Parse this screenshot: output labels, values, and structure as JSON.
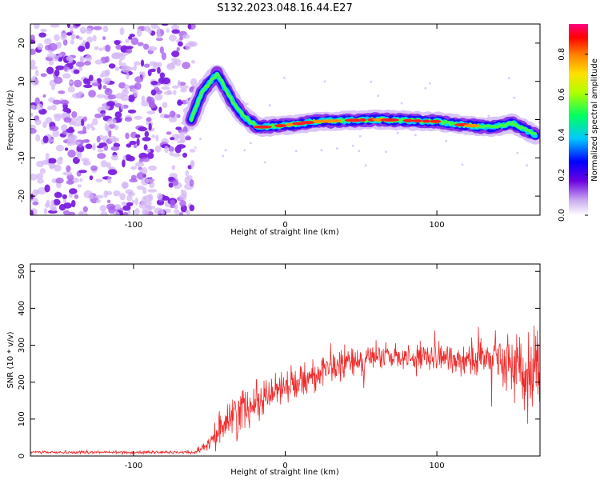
{
  "title": "S132.2023.048.16.44.E27",
  "colors": {
    "snr_line": "#ef2b2b",
    "scatter_purple": "#8a2be2",
    "axis": "#000000"
  },
  "chart_data": [
    {
      "type": "heatmap",
      "xlabel": "Height of straight line (km)",
      "ylabel": "Frequency (Hz)",
      "xlim": [
        -168,
        168
      ],
      "ylim": [
        -25,
        25
      ],
      "x_ticks": [
        -100,
        0,
        100
      ],
      "y_ticks": [
        -20,
        -10,
        0,
        10,
        20
      ],
      "colorbar": {
        "label": "Normalized spectral amplitude",
        "range": [
          0,
          0.95
        ],
        "ticks": [
          "0.0",
          "0.2",
          "0.4",
          "0.6",
          "0.8"
        ],
        "colormap": "rainbow"
      },
      "noise_region_x": [
        -168,
        -60
      ],
      "signal_track": [
        {
          "x": -62,
          "y": 0
        },
        {
          "x": -55,
          "y": 7
        },
        {
          "x": -45,
          "y": 12
        },
        {
          "x": -35,
          "y": 5
        },
        {
          "x": -28,
          "y": 1
        },
        {
          "x": -18,
          "y": -2
        },
        {
          "x": 0,
          "y": -1.5
        },
        {
          "x": 20,
          "y": -0.5
        },
        {
          "x": 60,
          "y": 0
        },
        {
          "x": 100,
          "y": -0.5
        },
        {
          "x": 120,
          "y": -1.5
        },
        {
          "x": 135,
          "y": -2
        },
        {
          "x": 150,
          "y": -1
        },
        {
          "x": 165,
          "y": -4
        }
      ]
    },
    {
      "type": "line",
      "xlabel": "Height of straight line (km)",
      "ylabel": "SNR (10 * v/v)",
      "xlim": [
        -168,
        168
      ],
      "ylim": [
        0,
        520
      ],
      "x_ticks": [
        -100,
        0,
        100
      ],
      "y_ticks": [
        0,
        100,
        200,
        300,
        400,
        500
      ],
      "series": [
        {
          "envelope": [
            {
              "x": -168,
              "mean": 10,
              "spread": 6
            },
            {
              "x": -60,
              "mean": 10,
              "spread": 6
            },
            {
              "x": -50,
              "mean": 30,
              "spread": 25
            },
            {
              "x": -40,
              "mean": 90,
              "spread": 80
            },
            {
              "x": -30,
              "mean": 120,
              "spread": 90
            },
            {
              "x": -20,
              "mean": 150,
              "spread": 80
            },
            {
              "x": 0,
              "mean": 190,
              "spread": 70
            },
            {
              "x": 20,
              "mean": 220,
              "spread": 60
            },
            {
              "x": 40,
              "mean": 250,
              "spread": 60
            },
            {
              "x": 60,
              "mean": 265,
              "spread": 55
            },
            {
              "x": 80,
              "mean": 270,
              "spread": 50
            },
            {
              "x": 100,
              "mean": 265,
              "spread": 55
            },
            {
              "x": 120,
              "mean": 265,
              "spread": 70
            },
            {
              "x": 140,
              "mean": 255,
              "spread": 110
            },
            {
              "x": 160,
              "mean": 240,
              "spread": 150
            },
            {
              "x": 168,
              "mean": 230,
              "spread": 150
            }
          ]
        }
      ]
    }
  ]
}
